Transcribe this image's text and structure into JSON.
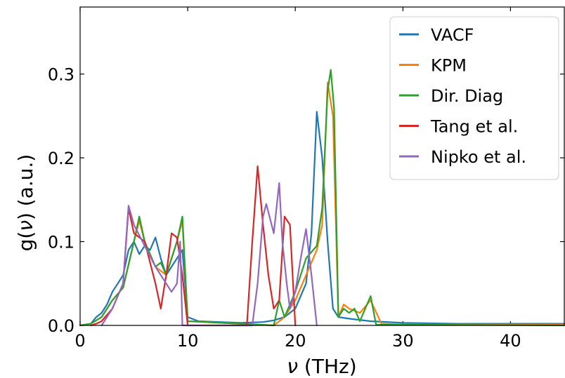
{
  "chart_data": {
    "type": "line",
    "xlabel_var": "ν",
    "xlabel_unit": "(THz)",
    "ylabel_pre": "g(",
    "ylabel_var": "ν",
    "ylabel_post": ") (a.u.)",
    "xlim": [
      0,
      45
    ],
    "ylim": [
      0,
      0.38
    ],
    "xticks": [
      0,
      10,
      20,
      30,
      40
    ],
    "xtick_labels": [
      "0",
      "10",
      "20",
      "30",
      "40"
    ],
    "yticks": [
      0.0,
      0.1,
      0.2,
      0.3
    ],
    "ytick_labels": [
      "0.0",
      "0.1",
      "0.2",
      "0.3"
    ],
    "grid": false,
    "legend_position": "top-right",
    "series": [
      {
        "name": "VACF",
        "color": "#1f77b4",
        "x": [
          0,
          1,
          1.5,
          2,
          2.5,
          3,
          3.5,
          4,
          4.5,
          5,
          5.5,
          6,
          6.5,
          7,
          7.5,
          8,
          8.5,
          9,
          9.5,
          10,
          11,
          13,
          15,
          17,
          18,
          19,
          20,
          21,
          21.5,
          22,
          22.5,
          23,
          23.5,
          24,
          25,
          27,
          30,
          35,
          40,
          45
        ],
        "y": [
          0,
          0.002,
          0.01,
          0.015,
          0.025,
          0.04,
          0.05,
          0.06,
          0.09,
          0.1,
          0.085,
          0.095,
          0.09,
          0.105,
          0.08,
          0.06,
          0.07,
          0.08,
          0.09,
          0.01,
          0.005,
          0.004,
          0.003,
          0.004,
          0.006,
          0.01,
          0.02,
          0.05,
          0.11,
          0.255,
          0.2,
          0.1,
          0.02,
          0.01,
          0.008,
          0.005,
          0.003,
          0.002,
          0.002,
          0.002
        ]
      },
      {
        "name": "KPM",
        "color": "#ff7f0e",
        "x": [
          0,
          1,
          2,
          3,
          4,
          5,
          5.5,
          6,
          7,
          8,
          9,
          9.5,
          10,
          18,
          19,
          20,
          21,
          22,
          22.5,
          23,
          23.5,
          24,
          24.5,
          25,
          26,
          27,
          28,
          30,
          45
        ],
        "y": [
          0,
          0.002,
          0.01,
          0.03,
          0.045,
          0.1,
          0.125,
          0.1,
          0.07,
          0.06,
          0.1,
          0.125,
          0.005,
          0,
          0.01,
          0.03,
          0.06,
          0.09,
          0.12,
          0.29,
          0.25,
          0.01,
          0.025,
          0.02,
          0.015,
          0.03,
          0.002,
          0.001,
          0.001
        ]
      },
      {
        "name": "Dir. Diag",
        "color": "#2ca02c",
        "x": [
          0,
          1,
          2,
          3,
          4,
          5,
          5.5,
          6,
          7,
          7.5,
          8,
          9,
          9.5,
          10,
          18,
          18.5,
          19,
          20,
          21,
          22,
          22.5,
          23,
          23.3,
          23.6,
          24,
          24.5,
          25,
          25.5,
          26,
          27,
          27.5,
          45
        ],
        "y": [
          0,
          0.002,
          0.01,
          0.03,
          0.045,
          0.1,
          0.13,
          0.1,
          0.07,
          0.075,
          0.06,
          0.1,
          0.13,
          0.005,
          0,
          0.03,
          0.01,
          0.04,
          0.08,
          0.095,
          0.14,
          0.28,
          0.305,
          0.26,
          0.01,
          0.02,
          0.015,
          0.02,
          0.005,
          0.035,
          0.001,
          0
        ]
      },
      {
        "name": "Tang et al.",
        "color": "#d62728",
        "x": [
          1,
          1.5,
          2,
          3,
          4,
          4.5,
          5,
          6,
          7,
          7.5,
          8,
          8.5,
          9,
          9.5,
          10,
          15.5,
          16,
          16.5,
          17,
          17.5,
          18,
          18.5,
          19,
          19.5,
          20
        ],
        "y": [
          0,
          0.002,
          0.005,
          0.02,
          0.05,
          0.14,
          0.11,
          0.1,
          0.05,
          0.02,
          0.06,
          0.11,
          0.105,
          0.06,
          0,
          0,
          0.1,
          0.19,
          0.12,
          0.06,
          0.02,
          0.03,
          0.13,
          0.12,
          0
        ]
      },
      {
        "name": "Nipko et al.",
        "color": "#9467bd",
        "x": [
          2,
          3,
          4,
          4.5,
          5,
          6,
          7,
          8,
          8.5,
          9,
          9.3,
          9.5,
          16,
          16.5,
          17,
          17.3,
          17.6,
          18,
          18.5,
          18.8,
          19.2,
          19.5,
          20,
          20.5,
          21,
          21.5,
          22
        ],
        "y": [
          0,
          0.02,
          0.05,
          0.143,
          0.12,
          0.095,
          0.07,
          0.05,
          0.04,
          0.05,
          0.1,
          0,
          0,
          0.05,
          0.13,
          0.145,
          0.13,
          0.11,
          0.17,
          0.1,
          0.05,
          0.02,
          0.04,
          0.08,
          0.115,
          0.06,
          0
        ]
      }
    ]
  }
}
